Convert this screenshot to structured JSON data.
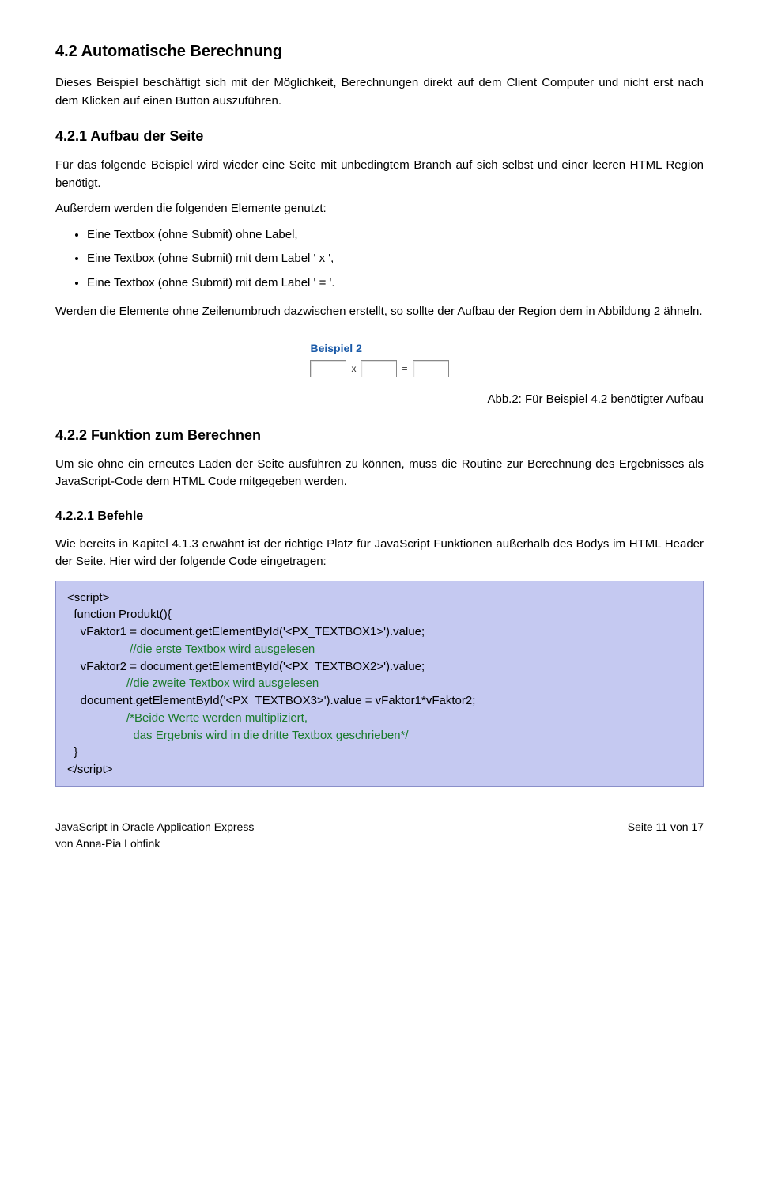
{
  "h2": "4.2 Automatische Berechnung",
  "p1": "Dieses Beispiel beschäftigt sich mit der Möglichkeit,  Berechnungen direkt auf dem Client Computer und nicht erst nach dem Klicken auf einen Button auszuführen.",
  "h3_1": "4.2.1 Aufbau der Seite",
  "p2": "Für das folgende Beispiel wird wieder eine Seite mit unbedingtem Branch auf sich selbst und einer leeren HTML Region benötigt.",
  "p3": "Außerdem werden die folgenden Elemente genutzt:",
  "bullets": [
    "Eine Textbox (ohne Submit) ohne Label,",
    "Eine Textbox (ohne Submit) mit dem Label ' x ',",
    "Eine Textbox (ohne Submit) mit dem Label ' = '."
  ],
  "p4": "Werden die Elemente ohne Zeilenumbruch dazwischen erstellt, so sollte der Aufbau der Region dem in Abbildung 2 ähneln.",
  "figure": {
    "title": "Beispiel 2",
    "op1": "x",
    "op2": "="
  },
  "caption": "Abb.2: Für Beispiel 4.2 benötigter Aufbau",
  "h3_2": "4.2.2 Funktion zum Berechnen",
  "p5": "Um sie ohne ein erneutes Laden der Seite ausführen zu können, muss die Routine zur Berechnung des Ergebnisses als JavaScript-Code dem HTML Code mitgegeben werden.",
  "h4_1": "4.2.2.1 Befehle",
  "p6": "Wie bereits in Kapitel 4.1.3 erwähnt ist der richtige Platz für JavaScript Funktionen außerhalb des Bodys im HTML Header der Seite. Hier wird der folgende Code eingetragen:",
  "code": {
    "l1": "<script>",
    "l2": "  function Produkt(){",
    "l3": "    vFaktor1 = document.getElementById('<PX_TEXTBOX1>').value;",
    "c1": "                   //die erste Textbox wird ausgelesen",
    "l4": "    vFaktor2 = document.getElementById('<PX_TEXTBOX2>').value;",
    "c2": "                  //die zweite Textbox wird ausgelesen",
    "l5": "    document.getElementById('<PX_TEXTBOX3>').value = vFaktor1*vFaktor2;",
    "c3": "                  /*Beide Werte werden multipliziert,",
    "c4": "                    das Ergebnis wird in die dritte Textbox geschrieben*/",
    "l6": "  }",
    "l7": "</script>"
  },
  "footer_left1": "JavaScript in Oracle Application Express",
  "footer_left2": "von Anna-Pia Lohfink",
  "footer_right": "Seite 11 von 17"
}
